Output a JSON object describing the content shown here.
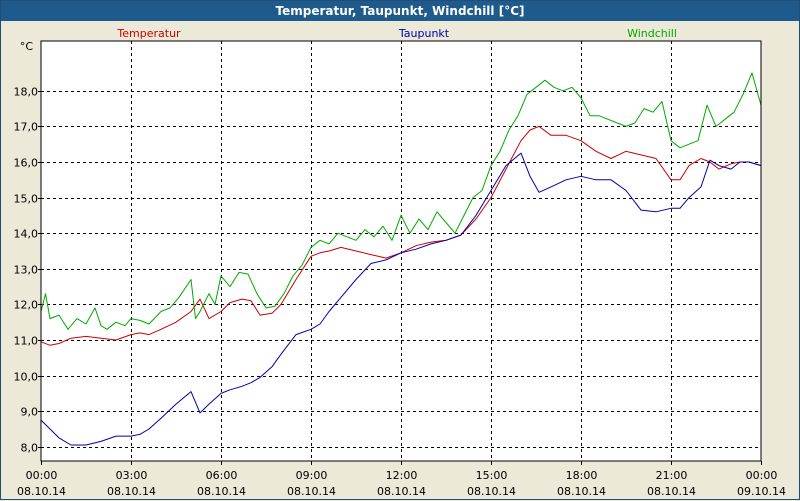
{
  "window": {
    "title": "Temperatur, Taupunkt, Windchill [°C]"
  },
  "colors": {
    "background": "#ECE9D8",
    "titlebar": "#1E5A8C",
    "temperatur": "#CC0000",
    "taupunkt": "#0000AA",
    "windchill": "#00AA00"
  },
  "chart_data": {
    "type": "line",
    "title": "Temperatur, Taupunkt, Windchill [°C]",
    "yunit": "°C",
    "ylim": [
      7.6,
      19.4
    ],
    "ytick_values": [
      8,
      9,
      10,
      11,
      12,
      13,
      14,
      15,
      16,
      17,
      18
    ],
    "ytick_labels": [
      "8,0",
      "9,0",
      "10,0",
      "11,0",
      "12,0",
      "13,0",
      "14,0",
      "15,0",
      "16,0",
      "17,0",
      "18,0"
    ],
    "xlim_hours": [
      0,
      24
    ],
    "xtick_hours": [
      0,
      3,
      6,
      9,
      12,
      15,
      18,
      21,
      24
    ],
    "xtick_time_labels": [
      "00:00",
      "03:00",
      "06:00",
      "09:00",
      "12:00",
      "15:00",
      "18:00",
      "21:00",
      "00:00"
    ],
    "xtick_date_labels": [
      "08.10.14",
      "08.10.14",
      "08.10.14",
      "08.10.14",
      "08.10.14",
      "08.10.14",
      "08.10.14",
      "08.10.14",
      "09.10.14"
    ],
    "grid": true,
    "legend_placement": "top",
    "series": [
      {
        "name": "Temperatur",
        "color": "#CC0000",
        "x": [
          0.0,
          0.3,
          0.6,
          1.0,
          1.5,
          2.0,
          2.5,
          3.0,
          3.3,
          3.6,
          4.0,
          4.5,
          5.0,
          5.3,
          5.6,
          6.0,
          6.3,
          6.7,
          7.0,
          7.3,
          7.7,
          8.0,
          8.5,
          9.0,
          9.3,
          9.6,
          10.0,
          10.5,
          11.0,
          11.5,
          12.0,
          12.5,
          13.0,
          13.5,
          14.0,
          14.5,
          15.0,
          15.5,
          16.0,
          16.3,
          16.6,
          17.0,
          17.5,
          18.0,
          18.5,
          19.0,
          19.5,
          20.0,
          20.5,
          21.0,
          21.3,
          21.6,
          22.0,
          22.3,
          22.6,
          23.0,
          23.3,
          23.6,
          24.0
        ],
        "values": [
          10.95,
          10.85,
          10.9,
          11.05,
          11.1,
          11.05,
          11.0,
          11.15,
          11.2,
          11.15,
          11.3,
          11.5,
          11.8,
          12.15,
          11.6,
          11.8,
          12.05,
          12.15,
          12.1,
          11.7,
          11.75,
          12.0,
          12.7,
          13.35,
          13.45,
          13.5,
          13.6,
          13.5,
          13.4,
          13.3,
          13.45,
          13.65,
          13.75,
          13.8,
          13.95,
          14.4,
          15.0,
          15.8,
          16.6,
          16.9,
          17.0,
          16.75,
          16.75,
          16.6,
          16.3,
          16.1,
          16.3,
          16.2,
          16.1,
          15.5,
          15.5,
          15.9,
          16.1,
          16.0,
          15.8,
          15.95,
          16.0,
          16.0,
          15.9
        ]
      },
      {
        "name": "Taupunkt",
        "color": "#0000AA",
        "x": [
          0.0,
          0.3,
          0.6,
          1.0,
          1.5,
          2.0,
          2.5,
          3.0,
          3.3,
          3.6,
          4.0,
          4.5,
          5.0,
          5.3,
          5.6,
          6.0,
          6.3,
          6.7,
          7.0,
          7.3,
          7.7,
          8.0,
          8.5,
          9.0,
          9.3,
          9.6,
          10.0,
          10.5,
          11.0,
          11.5,
          12.0,
          12.5,
          13.0,
          13.5,
          14.0,
          14.5,
          15.0,
          15.5,
          16.0,
          16.3,
          16.6,
          17.0,
          17.5,
          18.0,
          18.5,
          19.0,
          19.5,
          20.0,
          20.5,
          21.0,
          21.3,
          21.6,
          22.0,
          22.3,
          22.6,
          23.0,
          23.3,
          23.6,
          24.0
        ],
        "values": [
          8.75,
          8.5,
          8.25,
          8.05,
          8.05,
          8.15,
          8.3,
          8.3,
          8.35,
          8.5,
          8.8,
          9.2,
          9.55,
          8.95,
          9.2,
          9.5,
          9.6,
          9.7,
          9.8,
          9.95,
          10.25,
          10.6,
          11.15,
          11.3,
          11.45,
          11.8,
          12.2,
          12.7,
          13.15,
          13.25,
          13.45,
          13.55,
          13.7,
          13.8,
          13.95,
          14.5,
          15.2,
          15.9,
          16.25,
          15.6,
          15.15,
          15.3,
          15.5,
          15.6,
          15.5,
          15.5,
          15.2,
          14.65,
          14.6,
          14.7,
          14.7,
          15.0,
          15.3,
          16.05,
          15.9,
          15.8,
          16.0,
          16.0,
          15.9
        ]
      },
      {
        "name": "Windchill",
        "color": "#00AA00",
        "x": [
          0.0,
          0.15,
          0.3,
          0.6,
          0.9,
          1.2,
          1.5,
          1.8,
          2.0,
          2.2,
          2.5,
          2.8,
          3.0,
          3.3,
          3.6,
          4.0,
          4.3,
          4.6,
          5.0,
          5.15,
          5.3,
          5.6,
          5.8,
          6.0,
          6.3,
          6.6,
          6.9,
          7.2,
          7.5,
          7.8,
          8.1,
          8.4,
          8.7,
          9.0,
          9.3,
          9.6,
          9.9,
          10.2,
          10.5,
          10.8,
          11.1,
          11.4,
          11.7,
          12.0,
          12.3,
          12.6,
          12.9,
          13.2,
          13.5,
          13.8,
          14.1,
          14.4,
          14.7,
          15.0,
          15.3,
          15.6,
          15.9,
          16.2,
          16.5,
          16.8,
          17.1,
          17.4,
          17.7,
          18.0,
          18.3,
          18.6,
          18.9,
          19.2,
          19.5,
          19.8,
          20.1,
          20.4,
          20.7,
          21.0,
          21.3,
          21.6,
          21.9,
          22.2,
          22.5,
          22.8,
          23.1,
          23.4,
          23.7,
          24.0
        ],
        "values": [
          11.8,
          12.3,
          11.6,
          11.7,
          11.3,
          11.6,
          11.45,
          11.9,
          11.4,
          11.3,
          11.5,
          11.4,
          11.6,
          11.55,
          11.45,
          11.8,
          11.9,
          12.2,
          12.7,
          11.6,
          11.8,
          12.3,
          12.0,
          12.8,
          12.5,
          12.9,
          12.85,
          12.3,
          11.9,
          11.95,
          12.3,
          12.8,
          13.1,
          13.6,
          13.8,
          13.7,
          14.0,
          13.9,
          13.8,
          14.1,
          13.9,
          14.2,
          13.8,
          14.5,
          14.0,
          14.4,
          14.1,
          14.6,
          14.3,
          14.0,
          14.5,
          15.0,
          15.2,
          15.9,
          16.3,
          16.9,
          17.3,
          17.9,
          18.1,
          18.3,
          18.1,
          18.0,
          18.1,
          17.8,
          17.3,
          17.3,
          17.2,
          17.1,
          17.0,
          17.1,
          17.5,
          17.4,
          17.7,
          16.6,
          16.4,
          16.5,
          16.6,
          17.6,
          17.0,
          17.2,
          17.4,
          17.9,
          18.5,
          17.6
        ]
      }
    ]
  }
}
